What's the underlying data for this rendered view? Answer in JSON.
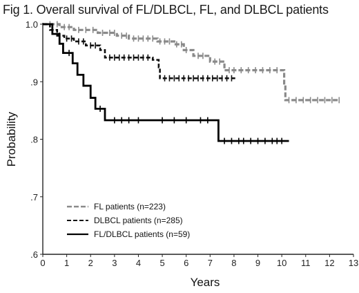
{
  "chart_data": {
    "type": "line",
    "title": "Fig 1. Overall survival of FL/DLBCL, FL, and DLBCL patients",
    "xlabel": "Years",
    "ylabel": "Probability",
    "xlim": [
      0,
      13
    ],
    "ylim": [
      0.6,
      1.0
    ],
    "x_ticks": [
      "0",
      "1",
      "2",
      "3",
      "4",
      "5",
      "6",
      "7",
      "8",
      "9",
      "10",
      "11",
      "12",
      "13"
    ],
    "y_ticks": [
      {
        "value": 1.0,
        "label": "1.0"
      },
      {
        "value": 0.9,
        "label": ".9"
      },
      {
        "value": 0.8,
        "label": ".8"
      },
      {
        "value": 0.7,
        "label": ".7"
      },
      {
        "value": 0.6,
        "label": ".6"
      }
    ],
    "grid": false,
    "legend_position": "bottom-left",
    "series": [
      {
        "name": "FL patients (n=223)",
        "style": "dashed-gray",
        "color": "#8a8a8a",
        "steps": [
          [
            0,
            1.0
          ],
          [
            0.7,
            0.995
          ],
          [
            1.3,
            0.99
          ],
          [
            2.3,
            0.985
          ],
          [
            3.1,
            0.98
          ],
          [
            3.6,
            0.975
          ],
          [
            4.8,
            0.97
          ],
          [
            5.5,
            0.965
          ],
          [
            5.9,
            0.955
          ],
          [
            6.3,
            0.945
          ],
          [
            7.0,
            0.935
          ],
          [
            7.6,
            0.92
          ],
          [
            10.1,
            0.895
          ],
          [
            10.15,
            0.868
          ],
          [
            12.4,
            0.868
          ]
        ],
        "censor": [
          0.3,
          0.6,
          0.9,
          1.1,
          1.5,
          1.8,
          2.1,
          2.5,
          2.8,
          3.0,
          3.3,
          3.5,
          3.8,
          4.0,
          4.2,
          4.4,
          4.6,
          4.9,
          5.1,
          5.3,
          5.6,
          5.8,
          6.0,
          6.5,
          6.7,
          7.2,
          7.4,
          7.8,
          8.0,
          8.3,
          8.6,
          8.9,
          9.2,
          9.5,
          9.8,
          10.3,
          10.6,
          10.9,
          11.2,
          11.5,
          11.8,
          12.1,
          12.4
        ]
      },
      {
        "name": "DLBCL patients (n=285)",
        "style": "dashed-black",
        "color": "#111111",
        "steps": [
          [
            0,
            1.0
          ],
          [
            0.3,
            0.99
          ],
          [
            0.6,
            0.98
          ],
          [
            0.9,
            0.975
          ],
          [
            1.3,
            0.97
          ],
          [
            1.8,
            0.963
          ],
          [
            2.4,
            0.955
          ],
          [
            2.6,
            0.942
          ],
          [
            4.6,
            0.938
          ],
          [
            4.85,
            0.925
          ],
          [
            4.9,
            0.906
          ],
          [
            8.1,
            0.906
          ]
        ],
        "censor": [
          0.4,
          0.7,
          1.0,
          1.2,
          1.5,
          1.7,
          2.0,
          2.2,
          2.8,
          3.0,
          3.2,
          3.4,
          3.6,
          3.8,
          4.0,
          4.2,
          4.4,
          5.1,
          5.3,
          5.5,
          5.7,
          5.9,
          6.1,
          6.3,
          6.5,
          6.7,
          6.9,
          7.1,
          7.3,
          7.5,
          7.7,
          7.9
        ]
      },
      {
        "name": "FL/DLBCL patients (n=59)",
        "style": "solid-black",
        "color": "#000000",
        "steps": [
          [
            0,
            1.0
          ],
          [
            0.4,
            0.983
          ],
          [
            0.7,
            0.966
          ],
          [
            0.85,
            0.95
          ],
          [
            1.25,
            0.932
          ],
          [
            1.45,
            0.912
          ],
          [
            1.7,
            0.893
          ],
          [
            2.0,
            0.872
          ],
          [
            2.2,
            0.853
          ],
          [
            2.6,
            0.833
          ],
          [
            7.3,
            0.833
          ],
          [
            7.35,
            0.797
          ],
          [
            10.3,
            0.797
          ]
        ],
        "censor": [
          1.1,
          2.4,
          3.0,
          3.3,
          3.6,
          4.0,
          5.0,
          5.5,
          6.0,
          6.6,
          6.9,
          7.6,
          7.9,
          8.2,
          8.4,
          8.7,
          9.0,
          9.3,
          9.6,
          9.8,
          10.0
        ]
      }
    ]
  }
}
